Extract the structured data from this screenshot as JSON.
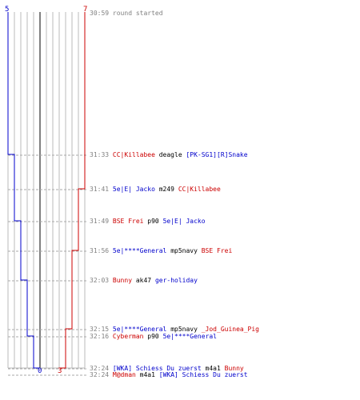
{
  "scores": {
    "blue_start": "5",
    "red_start": "7",
    "blue_end": "0",
    "red_end": "3"
  },
  "colors": {
    "blue": "#0000cc",
    "red": "#cc0000",
    "gray": "#808080",
    "grid": "#bbbbbb"
  },
  "events": [
    {
      "time": "30:59",
      "parts": [
        {
          "text": "round started",
          "team": "gray"
        }
      ]
    },
    {
      "time": "31:33",
      "parts": [
        {
          "text": "CC|Killabee",
          "team": "red"
        },
        {
          "text": "deagle",
          "team": "black"
        },
        {
          "text": "[PK-SG1][R]Snake",
          "team": "blue"
        }
      ]
    },
    {
      "time": "31:41",
      "parts": [
        {
          "text": "5e|E| Jacko",
          "team": "blue"
        },
        {
          "text": "m249",
          "team": "black"
        },
        {
          "text": "CC|Killabee",
          "team": "red"
        }
      ]
    },
    {
      "time": "31:49",
      "parts": [
        {
          "text": "BSE Frei",
          "team": "red"
        },
        {
          "text": "p90",
          "team": "black"
        },
        {
          "text": "5e|E| Jacko",
          "team": "blue"
        }
      ]
    },
    {
      "time": "31:56",
      "parts": [
        {
          "text": "5e|****General",
          "team": "blue"
        },
        {
          "text": "mp5navy",
          "team": "black"
        },
        {
          "text": "BSE Frei",
          "team": "red"
        }
      ]
    },
    {
      "time": "32:03",
      "parts": [
        {
          "text": "Bunny",
          "team": "red"
        },
        {
          "text": "ak47",
          "team": "black"
        },
        {
          "text": "ger-holiday",
          "team": "blue"
        }
      ]
    },
    {
      "time": "32:15",
      "parts": [
        {
          "text": "5e|****General",
          "team": "blue"
        },
        {
          "text": "mp5navy",
          "team": "black"
        },
        {
          "text": "_Jod_Guinea_Pig",
          "team": "red"
        }
      ]
    },
    {
      "time": "32:16",
      "parts": [
        {
          "text": "Cyberman",
          "team": "red"
        },
        {
          "text": "p90",
          "team": "black"
        },
        {
          "text": "5e|****General",
          "team": "blue"
        }
      ]
    },
    {
      "time": "32:24",
      "parts": [
        {
          "text": "[WKA] Schiess Du zuerst",
          "team": "blue"
        },
        {
          "text": "m4a1",
          "team": "black"
        },
        {
          "text": "Bunny",
          "team": "red"
        }
      ]
    },
    {
      "time": "32:24",
      "parts": [
        {
          "text": "M@dman",
          "team": "red"
        },
        {
          "text": "m4a1",
          "team": "black"
        },
        {
          "text": "[WKA] Schiess Du zuerst",
          "team": "blue"
        }
      ]
    }
  ]
}
